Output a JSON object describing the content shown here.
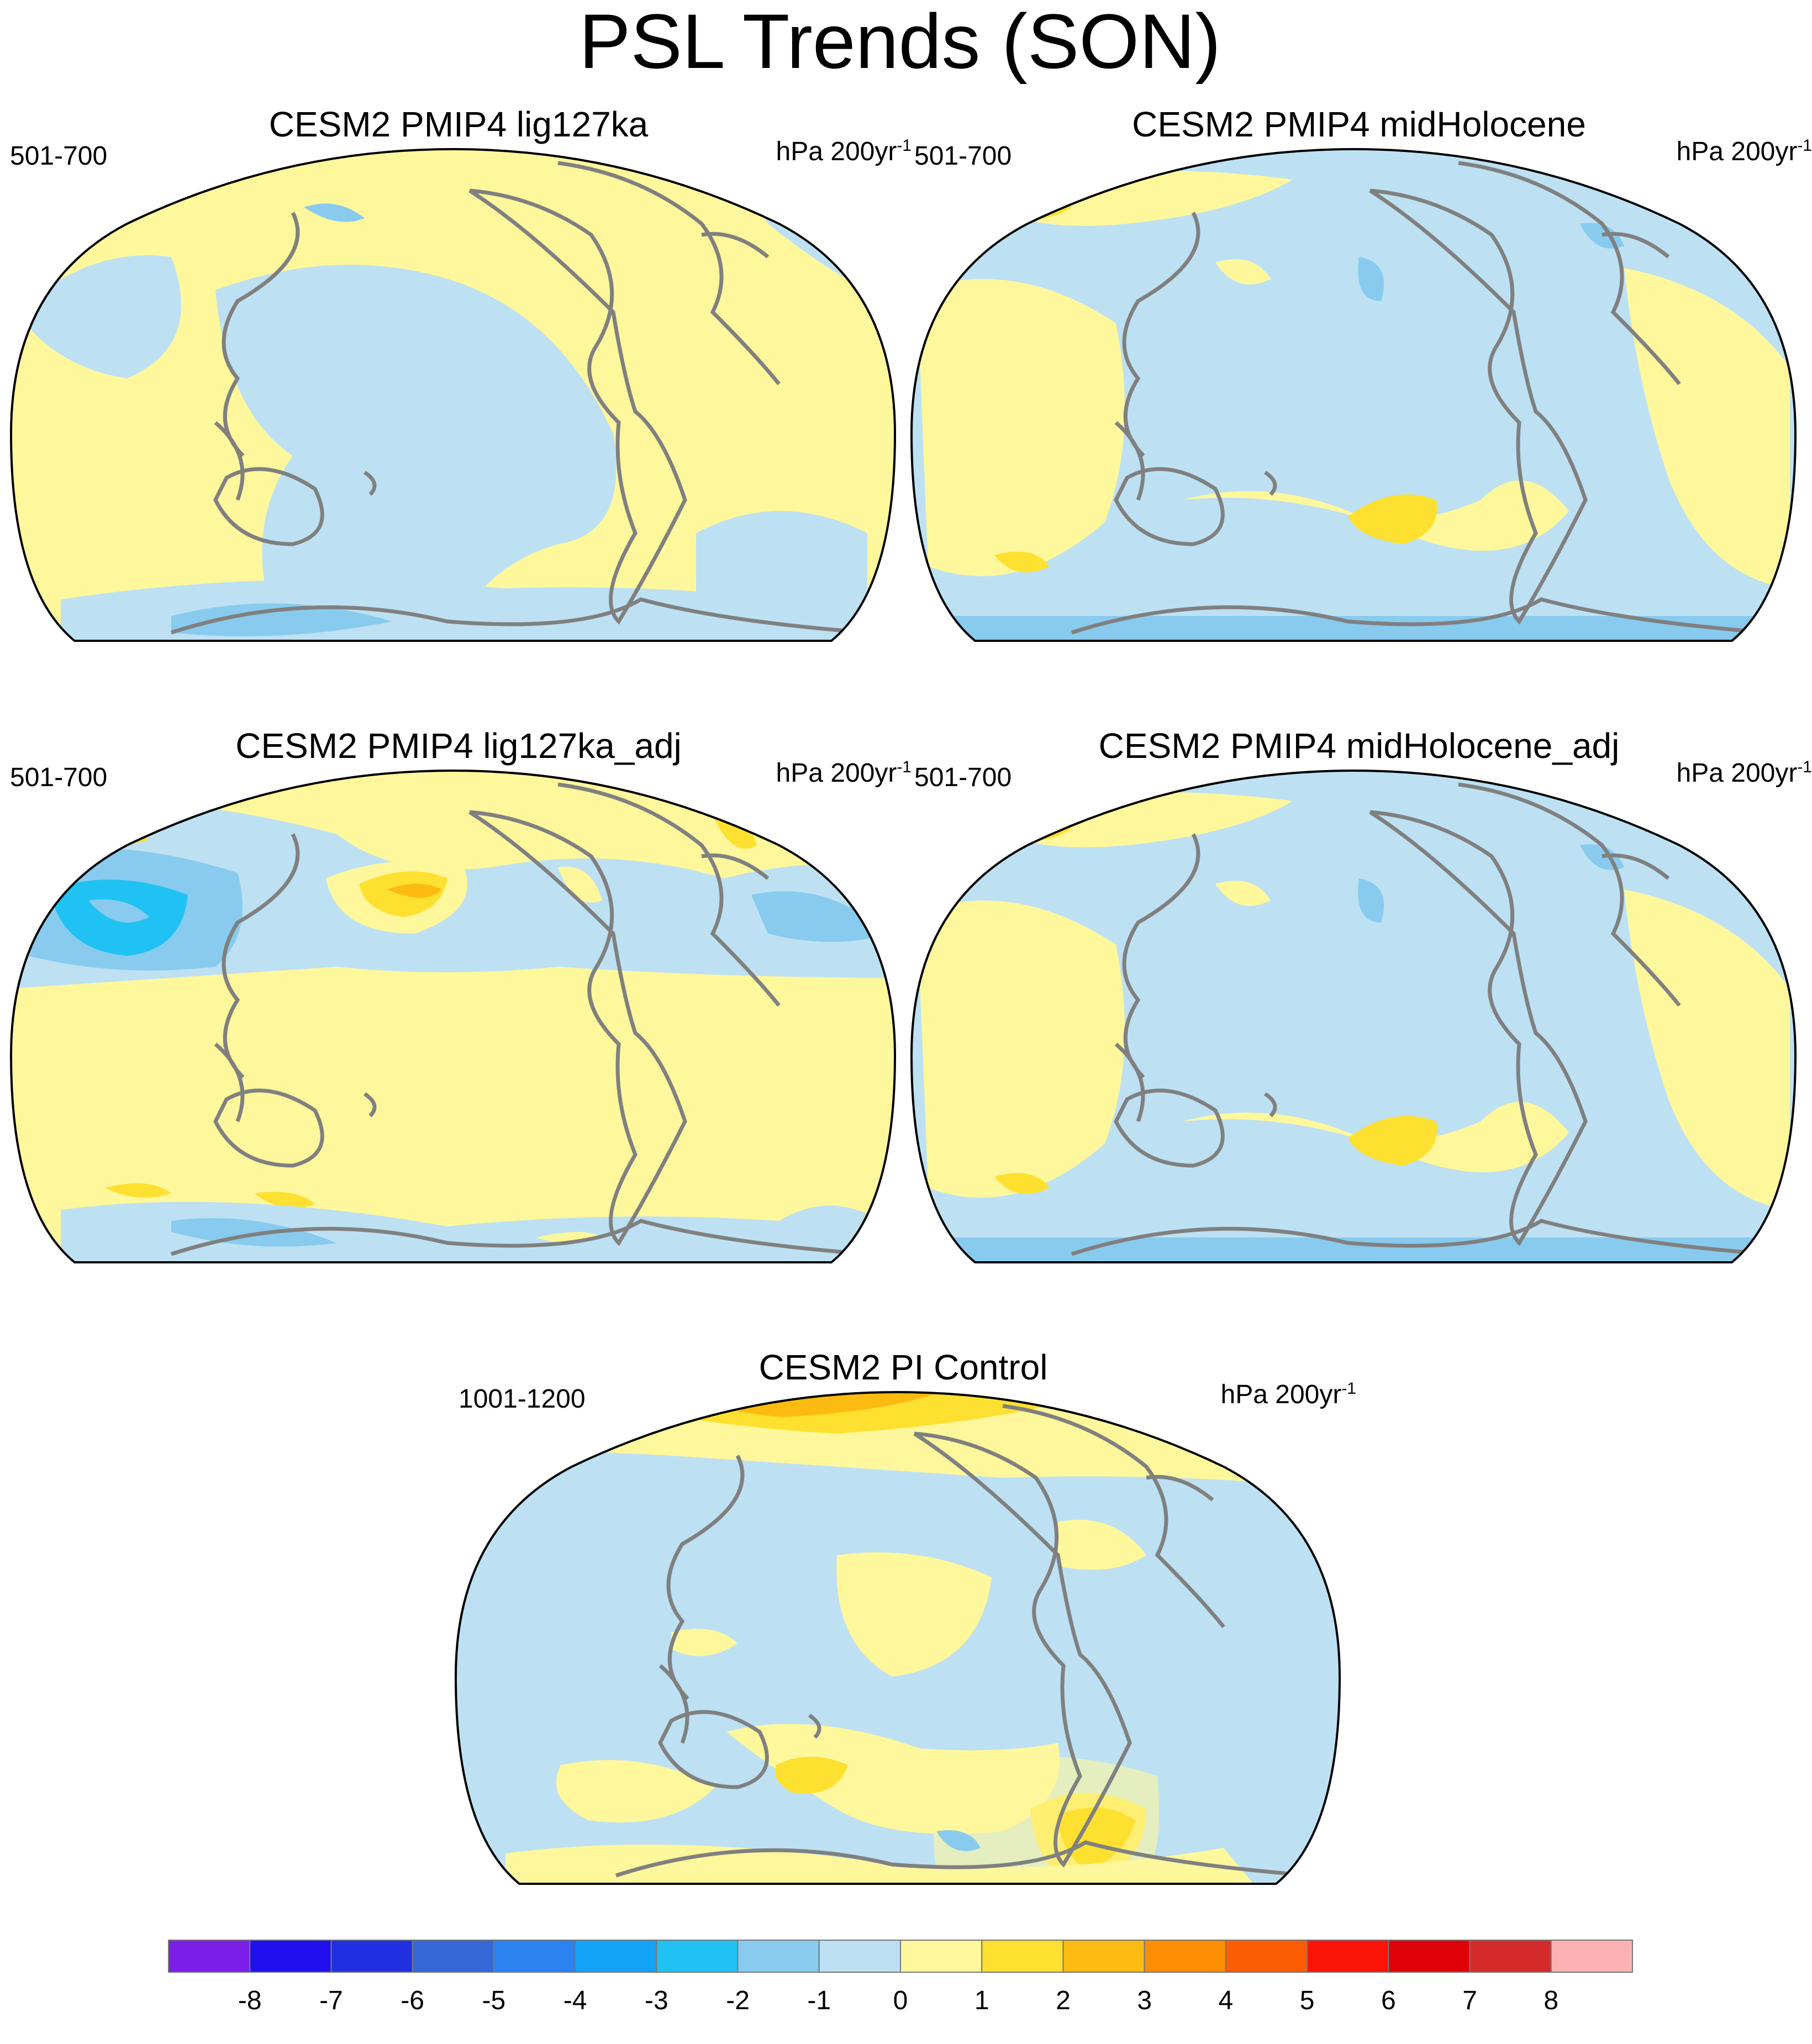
{
  "figure": {
    "title": "PSL Trends (SON)"
  },
  "panels": [
    {
      "id": "lig127ka",
      "title": "CESM2 PMIP4 lig127ka",
      "period": "501-700",
      "units": "hPa 200yr",
      "units_exp": "-1"
    },
    {
      "id": "midHolocene",
      "title": "CESM2 PMIP4 midHolocene",
      "period": "501-700",
      "units": "hPa 200yr",
      "units_exp": "-1"
    },
    {
      "id": "lig127ka_adj",
      "title": "CESM2 PMIP4 lig127ka_adj",
      "period": "501-700",
      "units": "hPa 200yr",
      "units_exp": "-1"
    },
    {
      "id": "midHolocene_adj",
      "title": "CESM2 PMIP4 midHolocene_adj",
      "period": "501-700",
      "units": "hPa 200yr",
      "units_exp": "-1"
    },
    {
      "id": "piControl",
      "title": "CESM2 PI Control",
      "period": "1001-1200",
      "units": "hPa 200yr",
      "units_exp": "-1"
    }
  ],
  "colorbar": {
    "labels": [
      "-8",
      "-7",
      "-6",
      "-5",
      "-4",
      "-3",
      "-2",
      "-1",
      "0",
      "1",
      "2",
      "3",
      "4",
      "5",
      "6",
      "7",
      "8"
    ],
    "colors": [
      "#7b1fe8",
      "#2010f0",
      "#2030e0",
      "#3668d8",
      "#2c82f0",
      "#14a2f6",
      "#20c2f4",
      "#88cbee",
      "#bde1f3",
      "#fff79c",
      "#fde030",
      "#fdba10",
      "#fd8e04",
      "#fc5c02",
      "#fc1408",
      "#e00008",
      "#d42a2a",
      "#fcb2b2"
    ]
  },
  "map_style": {
    "ocean_base": "#bde1f3",
    "positive": "#fff79c",
    "positive2": "#fde030",
    "positive3": "#fdba10",
    "negative": "#88cbee",
    "negative2": "#20c2f4",
    "coast": "#808080"
  }
}
